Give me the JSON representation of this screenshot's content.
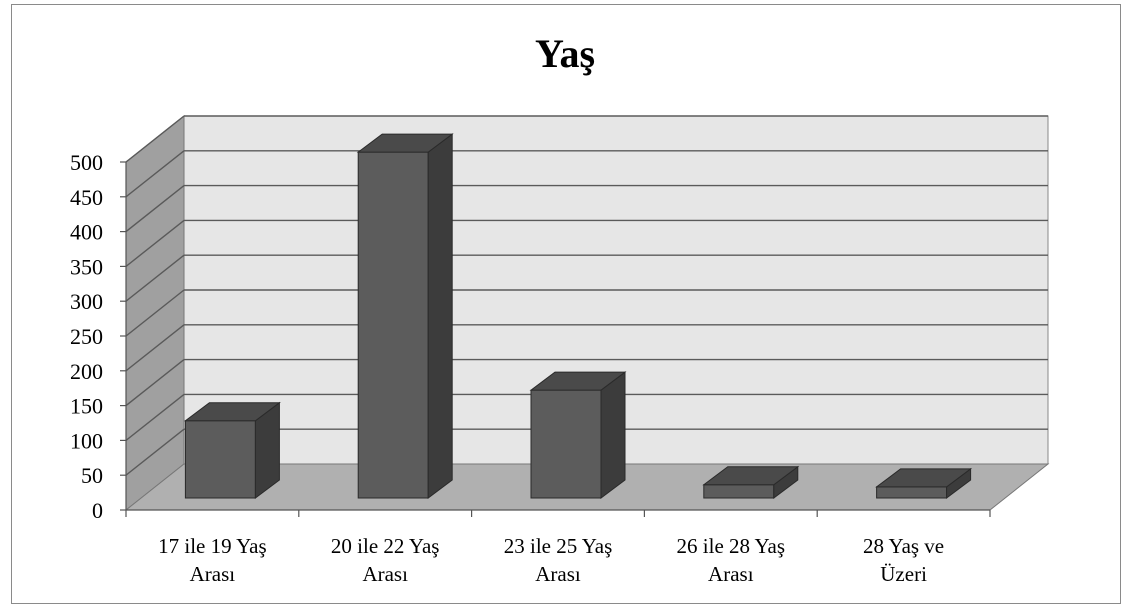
{
  "chart_data": {
    "type": "bar",
    "title": "Yaş",
    "xlabel": "",
    "ylabel": "",
    "ylim": [
      0,
      500
    ],
    "yticks": [
      "0",
      "50",
      "100",
      "150",
      "200",
      "250",
      "300",
      "350",
      "400",
      "450",
      "500"
    ],
    "categories": [
      [
        "17 ile 19 Yaş",
        "Arası"
      ],
      [
        "20 ile 22 Yaş",
        "Arası"
      ],
      [
        "23 ile 25 Yaş",
        "Arası"
      ],
      [
        "26 ile 28 Yaş",
        "Arası"
      ],
      [
        "28 Yaş ve",
        "Üzeri"
      ]
    ],
    "values": [
      111,
      497,
      155,
      19,
      16
    ],
    "grid": true,
    "legend": "none",
    "colors": {
      "bar_front": "#5c5c5c",
      "bar_side": "#3c3c3c",
      "bar_top": "#4a4a4a",
      "back_wall": "#e6e6e6",
      "side_wall": "#a0a0a0",
      "floor": "#b0b0b0",
      "grid": "#5a5a5a"
    }
  }
}
